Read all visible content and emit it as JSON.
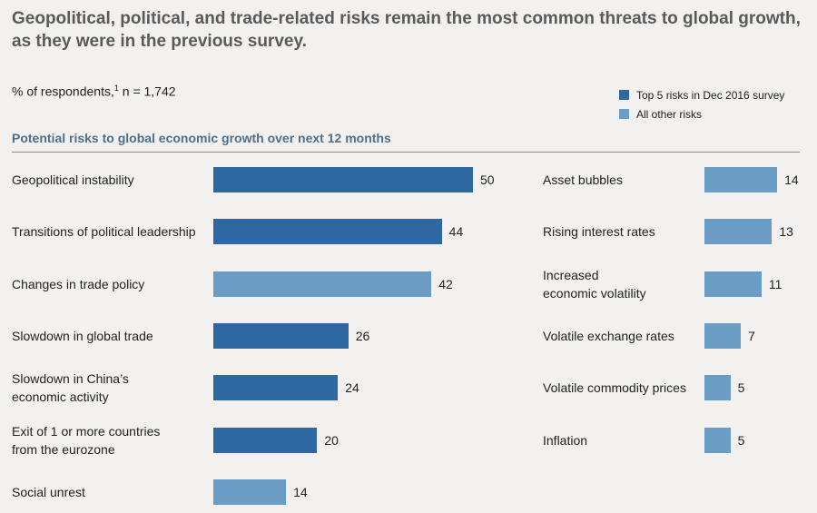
{
  "title": "Geopolitical, political, and trade-related risks remain the most common threats to global growth, as they were in the previous survey.",
  "subtitle": {
    "prefix": "% of respondents,",
    "footnote": "1",
    "n": " n = 1,742"
  },
  "section_title": "Potential risks to global economic growth over next 12 months",
  "colors": {
    "top5": "#2f67a3",
    "other": "#6b9cc6"
  },
  "legend": [
    {
      "label": "Top 5 risks in Dec 2016 survey",
      "key": "top5"
    },
    {
      "label": "All other risks",
      "key": "other"
    }
  ],
  "chart_data": {
    "type": "bar",
    "orientation": "horizontal",
    "title": "Potential risks to global economic growth over next 12 months",
    "panels": [
      {
        "categories": [
          "Geopolitical instability",
          "Transitions of political leadership",
          "Changes in trade policy",
          "Slowdown in global trade",
          "Slowdown in China’s\neconomic activity",
          "Exit of 1 or more countries\nfrom the eurozone",
          "Social unrest"
        ],
        "values": [
          50,
          44,
          42,
          26,
          24,
          20,
          14
        ],
        "groups": [
          "top5",
          "top5",
          "other",
          "top5",
          "top5",
          "top5",
          "other"
        ]
      },
      {
        "categories": [
          "Asset bubbles",
          "Rising interest rates",
          "Increased\neconomic volatility",
          "Volatile exchange rates",
          "Volatile commodity prices",
          "Inflation"
        ],
        "values": [
          14,
          13,
          11,
          7,
          5,
          5
        ],
        "groups": [
          "other",
          "other",
          "other",
          "other",
          "other",
          "other"
        ]
      }
    ]
  }
}
